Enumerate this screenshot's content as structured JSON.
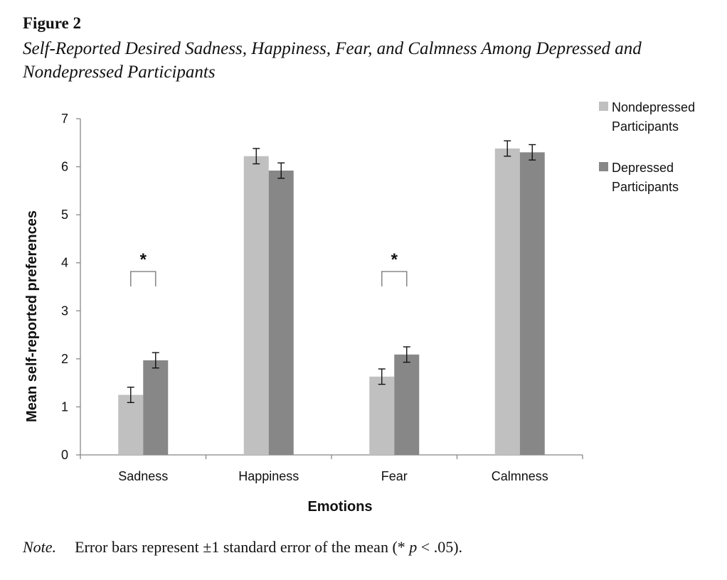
{
  "figure": {
    "label": "Figure 2",
    "title": "Self-Reported Desired Sadness, Happiness, Fear, and Calmness Among Depressed and Nondepressed Participants"
  },
  "note": {
    "label": "Note.",
    "text_before": "Error bars represent ±1 standard error of the mean (* ",
    "p": "p",
    "text_after": " < .05)."
  },
  "colors": {
    "nondepressed": "#c0c0c0",
    "depressed": "#878787",
    "axis": "#888888",
    "bracket": "#8a8a8a"
  },
  "chart_data": {
    "type": "bar",
    "title": "",
    "xlabel": "Emotions",
    "ylabel": "Mean self-reported preferences",
    "ylim": [
      0,
      7
    ],
    "yticks": [
      "0",
      "1",
      "2",
      "3",
      "4",
      "5",
      "6",
      "7"
    ],
    "grid": false,
    "legend_position": "right",
    "categories": [
      "Sadness",
      "Happiness",
      "Fear",
      "Calmness"
    ],
    "series": [
      {
        "name": "Nondepressed Participants",
        "name_lines": [
          "Nondepressed",
          "Participants"
        ],
        "values": [
          1.25,
          6.22,
          1.63,
          6.38
        ],
        "errors": [
          0.16,
          0.16,
          0.16,
          0.16
        ]
      },
      {
        "name": "Depressed Participants",
        "name_lines": [
          "Depressed",
          "Participants"
        ],
        "values": [
          1.97,
          5.92,
          2.09,
          6.3
        ],
        "errors": [
          0.16,
          0.16,
          0.16,
          0.16
        ]
      }
    ],
    "significance": [
      {
        "category": "Sadness",
        "label": "*"
      },
      {
        "category": "Fear",
        "label": "*"
      }
    ]
  }
}
